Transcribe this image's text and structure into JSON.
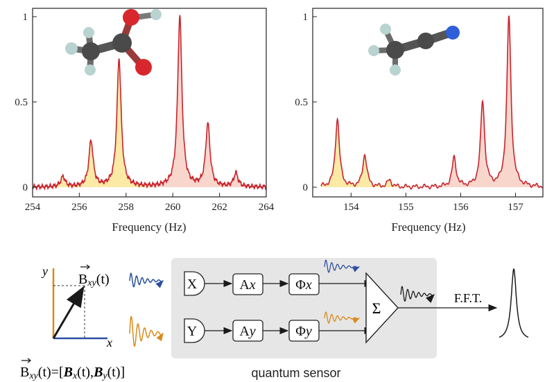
{
  "chart_data": [
    {
      "type": "line",
      "title": "",
      "xlabel": "Frequency (Hz)",
      "ylabel": "",
      "xlim": [
        254,
        264
      ],
      "ylim": [
        -0.05,
        1.05
      ],
      "xticks": [
        "254",
        "256",
        "258",
        "260",
        "262",
        "264"
      ],
      "yticks": [
        "0",
        "0.5",
        "1"
      ],
      "series": [
        {
          "peaks": [
            {
              "x": 255.3,
              "y": 0.06
            },
            {
              "x": 256.5,
              "y": 0.27
            },
            {
              "x": 257.7,
              "y": 0.75
            },
            {
              "x": 260.3,
              "y": 1.0
            },
            {
              "x": 261.5,
              "y": 0.37
            },
            {
              "x": 262.7,
              "y": 0.08
            }
          ]
        }
      ],
      "fill_yellow_range": [
        254,
        259
      ],
      "fill_pink_range": [
        259,
        264
      ],
      "colors": {
        "line": "#c8232c",
        "fill_yellow": "#fbe9a6",
        "fill_pink": "#f8d6cc"
      }
    },
    {
      "type": "line",
      "title": "",
      "xlabel": "Frequency (Hz)",
      "ylabel": "",
      "xlim": [
        153.3,
        157.5
      ],
      "ylim": [
        -0.05,
        1.05
      ],
      "xticks": [
        "154",
        "155",
        "156",
        "157"
      ],
      "yticks": [
        "0",
        "0.5",
        "1"
      ],
      "series": [
        {
          "peaks": [
            {
              "x": 153.75,
              "y": 0.4
            },
            {
              "x": 154.25,
              "y": 0.19
            },
            {
              "x": 154.7,
              "y": 0.04
            },
            {
              "x": 155.88,
              "y": 0.17
            },
            {
              "x": 156.4,
              "y": 0.5
            },
            {
              "x": 156.88,
              "y": 1.0
            }
          ]
        }
      ],
      "fill_yellow_range": [
        153.45,
        155.2
      ],
      "fill_pink_range": [
        155.2,
        157.5
      ],
      "colors": {
        "line": "#c8232c",
        "fill_yellow": "#fbe9a6",
        "fill_pink": "#f8d6cc"
      }
    }
  ],
  "molecules": [
    {
      "name": "acetic-acid",
      "atoms": [
        "carbon",
        "oxygen",
        "hydrogen"
      ]
    },
    {
      "name": "acetonitrile",
      "atoms": [
        "carbon",
        "nitrogen",
        "hydrogen"
      ]
    }
  ],
  "diagram": {
    "vector_label": "B",
    "vector_subscript": "xy",
    "vector_arg": "(t)",
    "axis_x": "x",
    "axis_y": "y",
    "equation": {
      "lhs": "B",
      "lhs_sub": "xy",
      "mid": "(t)=[",
      "bx": "B",
      "bx_sub": "x",
      "bx_arg": "(t),",
      "by": "B",
      "by_sub": "y",
      "by_arg": "(t)]"
    },
    "input_x": "X",
    "input_y": "Y",
    "amp_x": "A",
    "amp_x_sub": "x",
    "amp_y": "A",
    "amp_y_sub": "y",
    "phase_x": "Φ",
    "phase_x_sub": "x",
    "phase_y": "Φ",
    "phase_y_sub": "y",
    "sum_symbol": "Σ",
    "fft_label": "F.F.T.",
    "sensor_label": "quantum sensor",
    "colors": {
      "x_signal": "#2b4fa0",
      "y_signal": "#d98a1c",
      "box_bg": "#e6e6e6",
      "dark": "#1a1a1a"
    }
  }
}
